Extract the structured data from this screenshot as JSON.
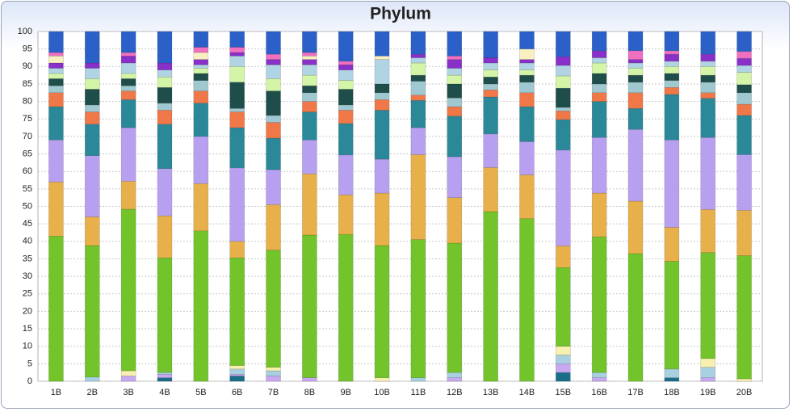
{
  "chart_data": {
    "type": "stacked_bar",
    "title": "Phylum",
    "categories": [
      "1B",
      "2B",
      "3B",
      "4B",
      "5B",
      "6B",
      "7B",
      "8B",
      "9B",
      "10B",
      "11B",
      "12B",
      "13B",
      "14B",
      "15B",
      "16B",
      "17B",
      "18B",
      "19B",
      "20B"
    ],
    "ylim": [
      0,
      100
    ],
    "yticks": [
      0,
      5,
      10,
      15,
      20,
      25,
      30,
      35,
      40,
      45,
      50,
      55,
      60,
      65,
      70,
      75,
      80,
      85,
      90,
      95,
      100
    ],
    "grid": true,
    "series": [
      {
        "color": "#1a6e8a",
        "values": [
          0,
          0,
          0,
          1,
          0,
          1.5,
          0,
          0,
          0,
          0,
          0,
          0,
          0,
          0,
          2.5,
          0,
          0,
          1,
          0,
          0
        ]
      },
      {
        "color": "#c8a8f0",
        "values": [
          0,
          0,
          1.5,
          1,
          0,
          0.5,
          1.5,
          1,
          0,
          0,
          0,
          1,
          0,
          0,
          2.5,
          1,
          0,
          0,
          1,
          0
        ]
      },
      {
        "color": "#a8d0e0",
        "values": [
          0,
          1.2,
          0,
          0.5,
          0,
          1.5,
          1.5,
          0,
          0,
          0,
          1,
          1.5,
          0,
          0,
          2.5,
          1.5,
          0,
          2.5,
          3,
          0
        ]
      },
      {
        "color": "#f8f0b0",
        "values": [
          0,
          0,
          1.5,
          0,
          0,
          1,
          1,
          0,
          0,
          1,
          0,
          0,
          0,
          0,
          2.5,
          0,
          0,
          0,
          2.5,
          0.7
        ]
      },
      {
        "color": "#72c42a",
        "values": [
          41.5,
          37.6,
          46.2,
          32.8,
          43,
          30.8,
          33.5,
          40.8,
          42,
          37.8,
          39.5,
          37,
          48.5,
          46.5,
          22.5,
          38.8,
          36.5,
          30.8,
          30.3,
          35.2
        ]
      },
      {
        "color": "#e8b04a",
        "values": [
          15.5,
          8.2,
          8,
          12,
          13.5,
          4.7,
          13,
          17.5,
          11.3,
          15,
          24.3,
          13,
          12.6,
          12.5,
          6.2,
          12.5,
          15,
          9.7,
          12.3,
          13
        ]
      },
      {
        "color": "#b8a0f0",
        "values": [
          12,
          17.5,
          15.3,
          13.5,
          13.5,
          21,
          10,
          9.7,
          11.4,
          9.7,
          7.7,
          11.7,
          9.6,
          9.5,
          27.4,
          15.9,
          20.5,
          25,
          20.6,
          15.9
        ]
      },
      {
        "color": "#2a8898",
        "values": [
          9.5,
          9,
          8,
          12.7,
          9.5,
          11.5,
          9,
          8,
          9,
          14,
          7.8,
          11.6,
          10.6,
          10,
          8.7,
          10.3,
          6,
          13,
          11.2,
          11.2
        ]
      },
      {
        "color": "#f07848",
        "values": [
          4,
          3.5,
          2.5,
          4,
          3.5,
          4.5,
          4.5,
          3,
          3.8,
          3,
          1.5,
          2.7,
          2,
          4,
          2.5,
          2.5,
          4.5,
          2,
          1.6,
          3.2
        ]
      },
      {
        "color": "#a0c8d0",
        "values": [
          2,
          2,
          1.5,
          2,
          3,
          1,
          2,
          2.5,
          1.5,
          2,
          4,
          2.5,
          1.7,
          3,
          1,
          2.5,
          3,
          2,
          3,
          3.3
        ]
      },
      {
        "color": "#1e4d4a",
        "values": [
          2,
          4.5,
          2,
          4.5,
          2,
          7.5,
          7,
          2,
          4.5,
          2.5,
          1.7,
          4,
          2,
          2,
          5.5,
          3,
          2,
          2,
          2,
          2.3
        ]
      },
      {
        "color": "#d4f4a8",
        "values": [
          1.5,
          3,
          1.5,
          3,
          1.5,
          4.5,
          3.5,
          3,
          2.5,
          0,
          3.5,
          2.5,
          2,
          1.5,
          3.5,
          3,
          2,
          2,
          2.5,
          3.5
        ]
      },
      {
        "color": "#b0d4e4",
        "values": [
          1.5,
          3,
          3,
          2,
          1,
          3,
          4,
          3,
          3,
          7,
          1.5,
          2,
          2,
          2,
          3,
          1.5,
          1.5,
          1.5,
          1.5,
          2
        ]
      },
      {
        "color": "#8830c8",
        "values": [
          1.5,
          1.5,
          2,
          2,
          1.5,
          1,
          1.5,
          1.5,
          1.5,
          0,
          1,
          2.5,
          1.5,
          1,
          2.5,
          2,
          1,
          2,
          2,
          2
        ]
      },
      {
        "color": "#f8f0c0",
        "values": [
          2,
          0,
          0,
          0,
          2,
          0,
          0,
          1,
          0,
          1,
          0,
          0,
          0,
          3,
          0,
          0,
          0,
          0,
          0,
          0
        ]
      },
      {
        "color": "#f070c0",
        "values": [
          1,
          0,
          1,
          0,
          1.5,
          1.5,
          1.5,
          1,
          1,
          0,
          0,
          1,
          0,
          0,
          0,
          0,
          2.5,
          1,
          0,
          2
        ]
      },
      {
        "color": "#2a60c8",
        "values": [
          6,
          9,
          6,
          9,
          4.5,
          4.5,
          6.5,
          6,
          8.5,
          7,
          6.5,
          7,
          7.5,
          5,
          7.2,
          5.5,
          5.5,
          5.5,
          6.5,
          5.7
        ]
      }
    ]
  }
}
